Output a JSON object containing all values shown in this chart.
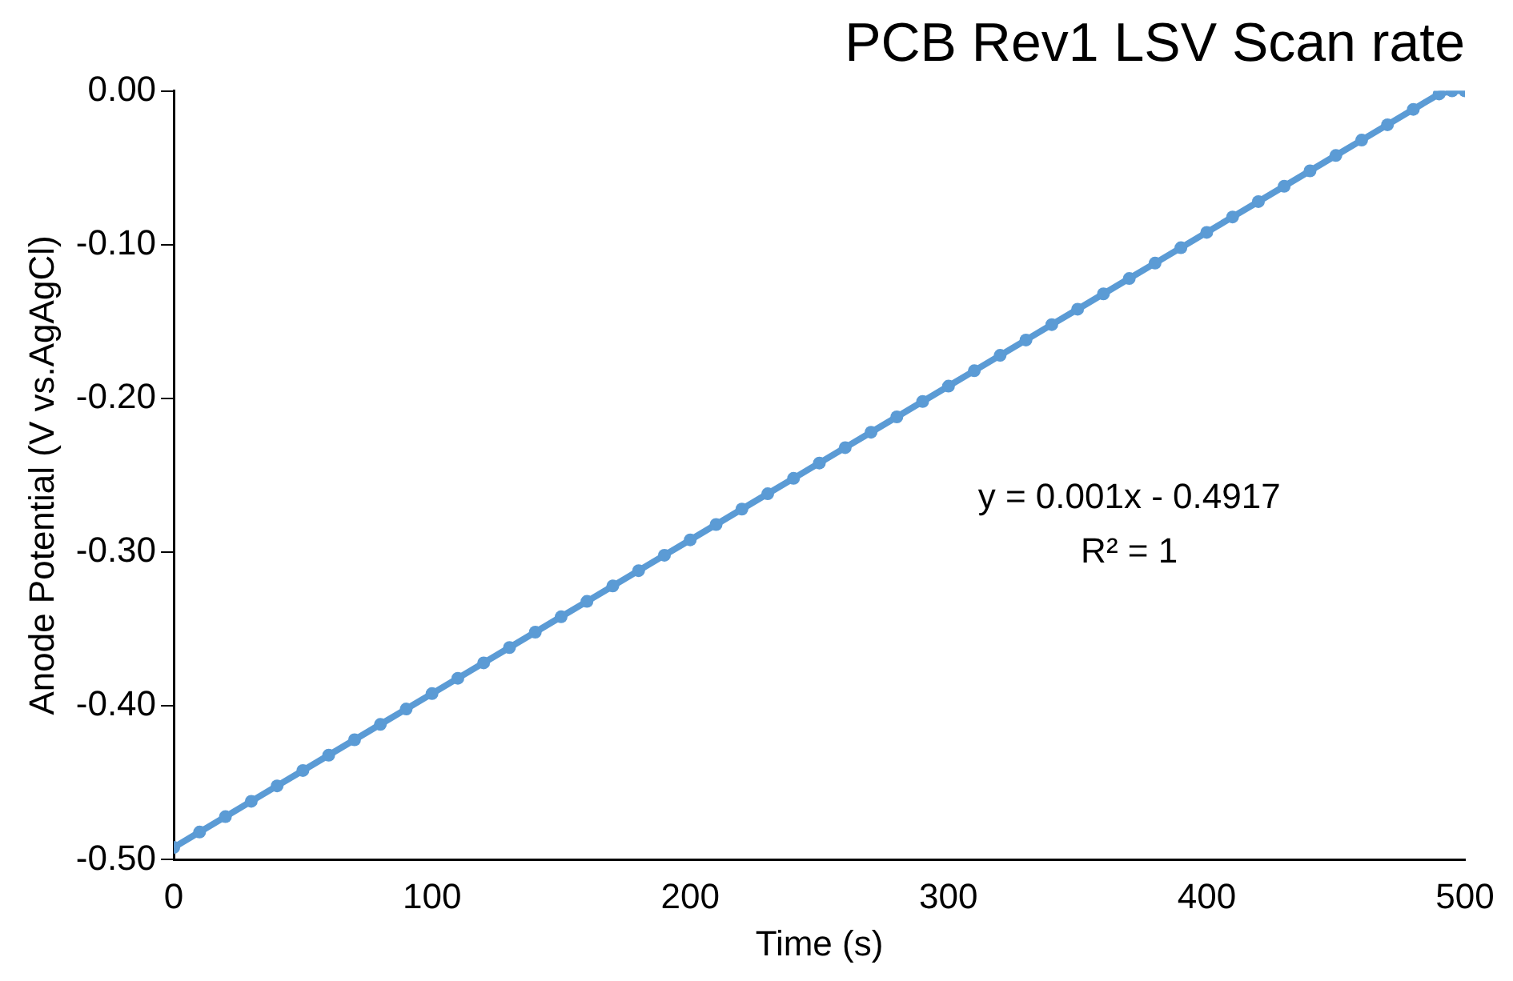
{
  "chart_data": {
    "type": "line",
    "title": "PCB Rev1 LSV Scan rate",
    "xlabel": "Time (s)",
    "ylabel": "Anode Potential (V vs.AgAgCl)",
    "x": [
      0,
      10,
      20,
      30,
      40,
      50,
      60,
      70,
      80,
      90,
      100,
      110,
      120,
      130,
      140,
      150,
      160,
      170,
      180,
      190,
      200,
      210,
      220,
      230,
      240,
      250,
      260,
      270,
      280,
      290,
      300,
      310,
      320,
      330,
      340,
      350,
      360,
      370,
      380,
      390,
      400,
      410,
      420,
      430,
      440,
      450,
      460,
      470,
      480,
      490,
      495,
      500
    ],
    "series": [
      {
        "color": "#5b9bd5",
        "values": [
          -0.492,
          -0.482,
          -0.472,
          -0.462,
          -0.452,
          -0.442,
          -0.432,
          -0.422,
          -0.412,
          -0.402,
          -0.392,
          -0.382,
          -0.372,
          -0.362,
          -0.352,
          -0.342,
          -0.332,
          -0.322,
          -0.312,
          -0.302,
          -0.292,
          -0.282,
          -0.272,
          -0.262,
          -0.252,
          -0.242,
          -0.232,
          -0.222,
          -0.212,
          -0.202,
          -0.192,
          -0.182,
          -0.172,
          -0.162,
          -0.152,
          -0.142,
          -0.132,
          -0.122,
          -0.112,
          -0.102,
          -0.092,
          -0.082,
          -0.072,
          -0.062,
          -0.052,
          -0.042,
          -0.032,
          -0.022,
          -0.012,
          -0.002,
          0,
          0
        ]
      }
    ],
    "xlim": [
      0,
      500
    ],
    "xticks": [
      0,
      100,
      200,
      300,
      400,
      500
    ],
    "ylim": [
      -0.5,
      0
    ],
    "yticks": [
      {
        "value": -0.5,
        "label": "-0.50"
      },
      {
        "value": -0.4,
        "label": "-0.40"
      },
      {
        "value": -0.3,
        "label": "-0.30"
      },
      {
        "value": -0.2,
        "label": "-0.20"
      },
      {
        "value": -0.1,
        "label": "-0.10"
      },
      {
        "value": 0,
        "label": "0.00"
      }
    ],
    "annotations": [
      "y = 0.001x - 0.4917",
      "R² = 1"
    ],
    "grid": false,
    "legend": false,
    "marker": "circle",
    "line_style": "solid"
  }
}
